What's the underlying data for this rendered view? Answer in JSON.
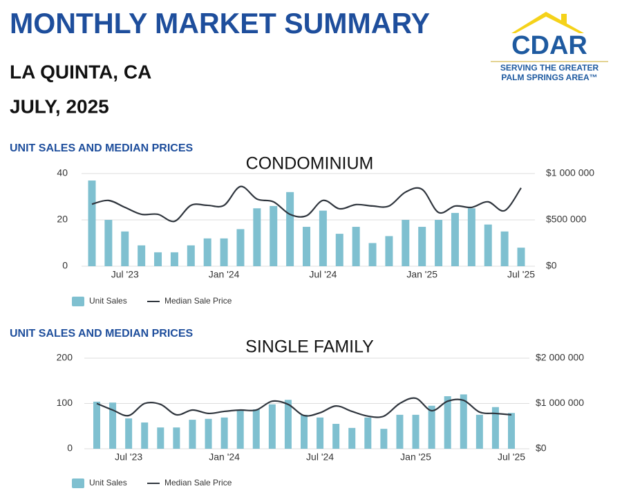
{
  "header": {
    "title": "MONTHLY MARKET SUMMARY",
    "location": "LA QUINTA, CA",
    "period": "JULY, 2025"
  },
  "logo": {
    "name": "CDAR",
    "line1": "SERVING THE GREATER",
    "line2": "PALM SPRINGS AREA™"
  },
  "chart_data": [
    {
      "type": "bar_line",
      "subtitle": "UNIT SALES AND MEDIAN PRICES",
      "title": "CONDOMINIUM",
      "categories": [
        null,
        null,
        "Jul '23",
        null,
        null,
        null,
        null,
        null,
        "Jan '24",
        null,
        null,
        null,
        null,
        null,
        "Jul '24",
        null,
        null,
        null,
        null,
        null,
        "Jan '25",
        null,
        null,
        null,
        null,
        null,
        "Jul '25"
      ],
      "series": [
        {
          "name": "Unit Sales",
          "color": "#7fc0d0",
          "kind": "bar",
          "values": [
            37,
            20,
            15,
            9,
            6,
            6,
            9,
            12,
            12,
            16,
            25,
            26,
            32,
            17,
            24,
            14,
            17,
            10,
            13,
            20,
            17,
            20,
            23,
            25,
            18,
            15,
            8
          ]
        },
        {
          "name": "Median Sale Price",
          "color": "#2f353d",
          "kind": "line",
          "axis": "y2",
          "values": [
            670000,
            710000,
            635000,
            560000,
            560000,
            485000,
            657000,
            657000,
            657000,
            860000,
            725000,
            695000,
            560000,
            545000,
            710000,
            620000,
            665000,
            650000,
            650000,
            800000,
            830000,
            580000,
            650000,
            635000,
            695000,
            600000,
            845000
          ]
        }
      ],
      "ylim": [
        0,
        40
      ],
      "yticks": [
        0,
        20,
        40
      ],
      "y2lim": [
        0,
        1000000
      ],
      "y2ticks": [
        {
          "value": 0,
          "label": "$0"
        },
        {
          "value": 500000,
          "label": "$500 000"
        },
        {
          "value": 1000000,
          "label": "$1 000 000"
        }
      ],
      "grid": true
    },
    {
      "type": "bar_line",
      "subtitle": "UNIT SALES AND MEDIAN PRICES",
      "title": "SINGLE FAMILY",
      "categories": [
        null,
        null,
        "Jul '23",
        null,
        null,
        null,
        null,
        null,
        "Jan '24",
        null,
        null,
        null,
        null,
        null,
        "Jul '24",
        null,
        null,
        null,
        null,
        null,
        "Jan '25",
        null,
        null,
        null,
        null,
        null,
        "Jul '25"
      ],
      "series": [
        {
          "name": "Unit Sales",
          "color": "#7fc0d0",
          "kind": "bar",
          "values": [
            104,
            102,
            67,
            58,
            47,
            47,
            64,
            66,
            69,
            84,
            87,
            98,
            108,
            75,
            69,
            55,
            46,
            69,
            44,
            75,
            75,
            95,
            116,
            120,
            75,
            92,
            79
          ]
        },
        {
          "name": "Median Sale Price",
          "color": "#2f353d",
          "kind": "line",
          "axis": "y2",
          "values": [
            1000000,
            855000,
            733000,
            1000000,
            980000,
            750000,
            855000,
            780000,
            825000,
            855000,
            855000,
            1050000,
            980000,
            733000,
            795000,
            945000,
            825000,
            720000,
            720000,
            1000000,
            1115000,
            840000,
            1050000,
            1070000,
            810000,
            780000,
            750000
          ]
        }
      ],
      "ylim": [
        0,
        200
      ],
      "yticks": [
        0,
        100,
        200
      ],
      "y2lim": [
        0,
        2000000
      ],
      "y2ticks": [
        {
          "value": 0,
          "label": "$0"
        },
        {
          "value": 1000000,
          "label": "$1 000 000"
        },
        {
          "value": 2000000,
          "label": "$2 000 000"
        }
      ],
      "grid": true
    }
  ]
}
